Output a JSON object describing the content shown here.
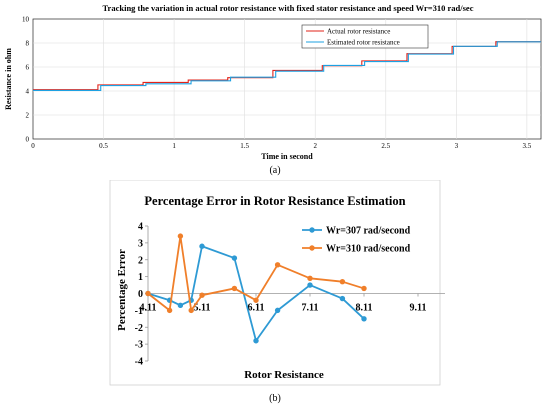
{
  "figure_a": {
    "caption": "(a)"
  },
  "figure_b": {
    "caption": "(b)"
  },
  "chart_data": [
    {
      "type": "line",
      "title": "Tracking the variation in actual rotor resistance with fixed stator resistance and speed Wr=310 rad/sec",
      "xlabel": "Time in second",
      "ylabel": "Resistance in ohm",
      "xlim": [
        0,
        3.6
      ],
      "ylim": [
        0,
        10
      ],
      "xticks": [
        "0",
        "0.5",
        "1",
        "1.5",
        "2",
        "2.5",
        "3",
        "3.5"
      ],
      "yticks": [
        "0",
        "2",
        "4",
        "6",
        "8",
        "10"
      ],
      "grid": true,
      "legend_position": "top-right",
      "series": [
        {
          "name": "Actual rotor resistance",
          "color": "#e2231a",
          "step_x": [
            0,
            0.46,
            0.78,
            1.1,
            1.38,
            1.7,
            2.05,
            2.33,
            2.65,
            2.97,
            3.28,
            3.6
          ],
          "values": [
            4.11,
            4.51,
            4.71,
            4.91,
            5.11,
            5.71,
            6.11,
            6.51,
            7.11,
            7.71,
            8.11,
            8.11
          ]
        },
        {
          "name": "Estimated rotor resistance",
          "color": "#1da1e2",
          "step_x": [
            0,
            0.48,
            0.8,
            1.12,
            1.4,
            1.72,
            2.06,
            2.35,
            2.66,
            2.98,
            3.29,
            3.6
          ],
          "values": [
            4.05,
            4.45,
            4.6,
            4.85,
            5.15,
            5.65,
            6.13,
            6.45,
            7.08,
            7.72,
            8.1,
            8.1
          ]
        }
      ]
    },
    {
      "type": "line",
      "title": "Percentage Error in Rotor Resistance Estimation",
      "xlabel": "Rotor Resistance",
      "ylabel": "Percentage Error",
      "xlim": [
        4.11,
        9.61
      ],
      "ylim": [
        -4,
        4
      ],
      "xticks": [
        "4.11",
        "5.11",
        "6.11",
        "7.11",
        "8.11",
        "9.11"
      ],
      "yticks": [
        "4",
        "3",
        "2",
        "1",
        "0",
        "-1",
        "-2",
        "-3",
        "-4"
      ],
      "grid": false,
      "legend_position": "top-right",
      "series": [
        {
          "name": "Wr=307 rad/second",
          "color": "#2e9ad4",
          "x": [
            4.11,
            4.51,
            4.71,
            4.91,
            5.11,
            5.71,
            6.11,
            6.51,
            7.11,
            7.71,
            8.11
          ],
          "values": [
            0,
            -0.4,
            -0.7,
            -0.4,
            2.8,
            2.1,
            -2.8,
            -1.0,
            0.5,
            -0.3,
            -1.5
          ]
        },
        {
          "name": "Wr=310 rad/second",
          "color": "#f07f2a",
          "x": [
            4.11,
            4.51,
            4.71,
            4.91,
            5.11,
            5.71,
            6.11,
            6.51,
            7.11,
            7.71,
            8.11
          ],
          "values": [
            0,
            -1.0,
            3.4,
            -1.0,
            -0.1,
            0.3,
            -0.4,
            1.7,
            0.9,
            0.7,
            0.3
          ]
        }
      ]
    }
  ]
}
